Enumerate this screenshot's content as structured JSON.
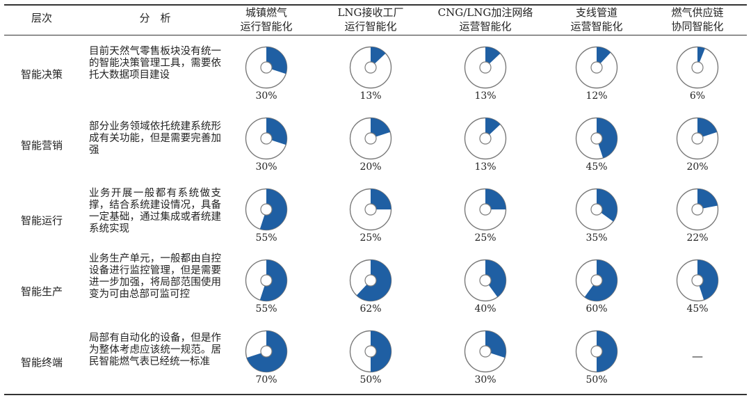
{
  "header": {
    "level": "层次",
    "analysis": "分　析",
    "cols": [
      [
        "城镇燃气",
        "运行智能化"
      ],
      [
        "LNG接收工厂",
        "运行智能化"
      ],
      [
        "CNG/LNG加注网络",
        "运营智能化"
      ],
      [
        "支线管道",
        "运营智能化"
      ],
      [
        "燃气供应链",
        "协同智能化"
      ]
    ]
  },
  "rows": [
    {
      "level": "智能决策",
      "analysis": "目前天然气零售板块没有统一的智能决策管理工具，需要依托大数据项目建设",
      "values": [
        {
          "pct": 0.3,
          "label": "30%"
        },
        {
          "pct": 0.13,
          "label": "13%"
        },
        {
          "pct": 0.13,
          "label": "13%"
        },
        {
          "pct": 0.12,
          "label": "12%"
        },
        {
          "pct": 0.06,
          "label": "6%"
        }
      ]
    },
    {
      "level": "智能营销",
      "analysis": "部分业务领域依托统建系统形成有关功能，但是需要完善加强",
      "values": [
        {
          "pct": 0.3,
          "label": "30%"
        },
        {
          "pct": 0.2,
          "label": "20%"
        },
        {
          "pct": 0.13,
          "label": "13%"
        },
        {
          "pct": 0.45,
          "label": "45%"
        },
        {
          "pct": 0.2,
          "label": "20%"
        }
      ]
    },
    {
      "level": "智能运行",
      "analysis": "业务开展一般都有系统做支撑，结合系统建设情况，具备一定基础，通过集成或者统建系统实现",
      "values": [
        {
          "pct": 0.55,
          "label": "55%"
        },
        {
          "pct": 0.25,
          "label": "25%"
        },
        {
          "pct": 0.25,
          "label": "25%"
        },
        {
          "pct": 0.35,
          "label": "35%"
        },
        {
          "pct": 0.22,
          "label": "22%"
        }
      ]
    },
    {
      "level": "智能生产",
      "analysis": "业务生产单元，一般都由自控设备进行监控管理，但是需要进一步加强，将局部范围使用变为可由总部可监可控",
      "values": [
        {
          "pct": 0.55,
          "label": "55%"
        },
        {
          "pct": 0.62,
          "label": "62%"
        },
        {
          "pct": 0.4,
          "label": "40%"
        },
        {
          "pct": 0.6,
          "label": "60%"
        },
        {
          "pct": 0.45,
          "label": "45%"
        }
      ]
    },
    {
      "level": "智能终端",
      "analysis": "局部有自动化的设备，但是作为整体考虑应该统一规范。居民智能燃气表已经统一标准",
      "values": [
        {
          "pct": 0.7,
          "label": "70%"
        },
        {
          "pct": 0.5,
          "label": "50%"
        },
        {
          "pct": 0.3,
          "label": "30%"
        },
        {
          "pct": 0.5,
          "label": "50%"
        },
        {
          "pct": null,
          "label": "—"
        }
      ]
    }
  ],
  "colors": {
    "fill": "#1f5fa3",
    "ring": "#7a7a7a",
    "rule": "#333333"
  }
}
